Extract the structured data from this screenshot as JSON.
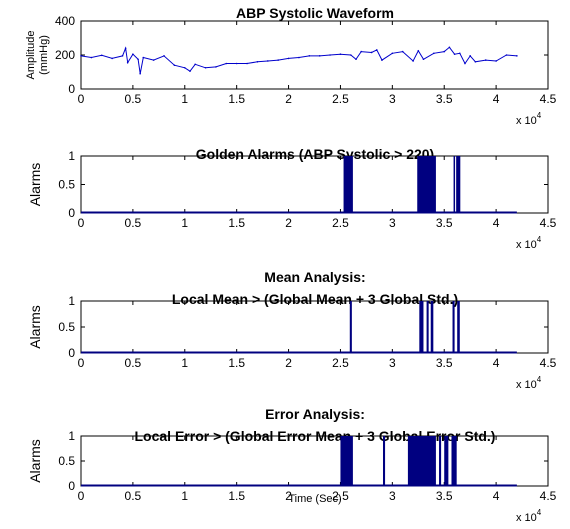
{
  "chart_data": [
    {
      "type": "line",
      "title": "ABP Systolic Waveform",
      "ylabel": [
        "Amplitude",
        "(mmHg)"
      ],
      "xlabel": "",
      "xlim": [
        0,
        45000
      ],
      "ylim": [
        0,
        400
      ],
      "xticks": [
        "0",
        "0.5",
        "1",
        "1.5",
        "2",
        "2.5",
        "3",
        "3.5",
        "4",
        "4.5"
      ],
      "yticks": [
        "0",
        "200",
        "400"
      ],
      "exponent_label": "x 10",
      "exponent": "4",
      "series_color": "#0000cc",
      "series": [
        {
          "x": [
            0,
            1000,
            2000,
            3000,
            4000,
            4300,
            4500,
            5000,
            5500,
            5700,
            6000,
            7000,
            8000,
            9000,
            10000,
            10500,
            11000,
            12000,
            13000,
            14000,
            15000,
            16000,
            17000,
            18000,
            19000,
            20000,
            21000,
            22000,
            23000,
            24000,
            25000,
            26000,
            26500,
            27000,
            28000,
            28500,
            29000,
            30000,
            31000,
            32000,
            32500,
            33000,
            34000,
            35000,
            35500,
            36000,
            36500,
            37000,
            37500,
            38000,
            39000,
            40000,
            41000,
            42000
          ],
          "values": [
            195,
            185,
            198,
            180,
            195,
            240,
            155,
            205,
            175,
            90,
            185,
            170,
            195,
            140,
            125,
            105,
            145,
            125,
            130,
            150,
            150,
            150,
            160,
            165,
            170,
            180,
            185,
            195,
            195,
            200,
            205,
            200,
            175,
            220,
            215,
            230,
            170,
            210,
            220,
            165,
            225,
            175,
            210,
            220,
            245,
            205,
            210,
            150,
            195,
            160,
            170,
            165,
            200,
            195
          ]
        }
      ]
    },
    {
      "type": "bar",
      "title": "Golden Alarms (ABP Systolic > 220)",
      "ylabel": "Alarms",
      "xlabel": "",
      "xlim": [
        0,
        45000
      ],
      "ylim": [
        0,
        1
      ],
      "xticks": [
        "0",
        "0.5",
        "1",
        "1.5",
        "2",
        "2.5",
        "3",
        "3.5",
        "4",
        "4.5"
      ],
      "yticks": [
        "0",
        "0.5",
        "1"
      ],
      "exponent_label": "x 10",
      "exponent": "4",
      "series_color": "#000080",
      "data_range": [
        0,
        42000
      ],
      "alarm_intervals": [
        [
          25300,
          26200
        ],
        [
          32400,
          34200
        ],
        [
          35900,
          36000
        ],
        [
          36150,
          36550
        ]
      ]
    },
    {
      "type": "bar",
      "title": "Mean Analysis:",
      "subtitle": "Local Mean > (Global Mean + 3 Global Std.)",
      "ylabel": "Alarms",
      "xlabel": "",
      "xlim": [
        0,
        45000
      ],
      "ylim": [
        0,
        1
      ],
      "xticks": [
        "0",
        "0.5",
        "1",
        "1.5",
        "2",
        "2.5",
        "3",
        "3.5",
        "4",
        "4.5"
      ],
      "yticks": [
        "0",
        "0.5",
        "1"
      ],
      "exponent_label": "x 10",
      "exponent": "4",
      "series_color": "#000080",
      "data_range": [
        0,
        42000
      ],
      "alarm_intervals": [
        [
          25900,
          26100
        ],
        [
          32600,
          33000
        ],
        [
          33300,
          33500
        ],
        [
          33700,
          33950
        ],
        [
          35800,
          36000
        ],
        [
          36250,
          36500
        ]
      ]
    },
    {
      "type": "bar",
      "title": "Error Analysis:",
      "subtitle": "Local Error > (Global Error Mean + 3 Global Error Std.)",
      "ylabel": "Alarms",
      "xlabel": "Time (Sec)",
      "xlim": [
        0,
        45000
      ],
      "ylim": [
        0,
        1
      ],
      "xticks": [
        "0",
        "0.5",
        "1",
        "1.5",
        "2",
        "2.5",
        "3",
        "3.5",
        "4",
        "4.5"
      ],
      "yticks": [
        "0",
        "0.5",
        "1"
      ],
      "exponent_label": "x 10",
      "exponent": "4",
      "series_color": "#000080",
      "data_range": [
        0,
        42000
      ],
      "alarm_intervals": [
        [
          25000,
          26200
        ],
        [
          29100,
          29300
        ],
        [
          31500,
          34200
        ],
        [
          34500,
          34700
        ],
        [
          35000,
          35400
        ],
        [
          35700,
          36200
        ]
      ]
    }
  ]
}
